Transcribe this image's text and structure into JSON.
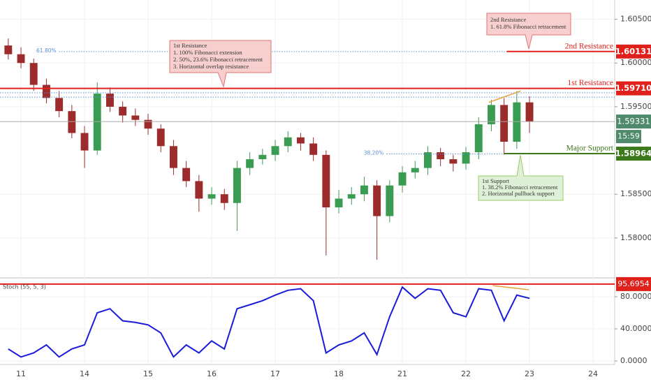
{
  "chart_data": {
    "type": "candlestick",
    "x": [
      -0.2,
      0,
      0.2,
      0.4,
      0.6,
      0.8,
      1.0,
      1.2,
      1.4,
      1.6,
      1.8,
      2.0,
      2.2,
      2.4,
      2.6,
      2.8,
      3.0,
      3.2,
      3.4,
      3.6,
      3.8,
      4.0,
      4.2,
      4.4,
      4.6,
      4.8,
      5.0,
      5.2,
      5.4,
      5.6,
      5.8,
      6.0,
      6.2,
      6.4,
      6.6,
      6.8,
      7.0,
      7.2,
      7.4,
      7.6,
      7.8,
      8.0
    ],
    "open": [
      1.602,
      1.601,
      1.6,
      1.5975,
      1.596,
      1.5945,
      1.592,
      1.59,
      1.5965,
      1.595,
      1.594,
      1.5935,
      1.5925,
      1.5905,
      1.588,
      1.5865,
      1.5845,
      1.585,
      1.584,
      1.588,
      1.589,
      1.5895,
      1.5905,
      1.5915,
      1.5908,
      1.5895,
      1.5835,
      1.5845,
      1.585,
      1.586,
      1.5825,
      1.586,
      1.5875,
      1.588,
      1.5898,
      1.589,
      1.5885,
      1.5898,
      1.593,
      1.5952,
      1.591,
      1.5955
    ],
    "high": [
      1.6028,
      1.6018,
      1.6005,
      1.5982,
      1.5968,
      1.5952,
      1.5928,
      1.5978,
      1.5972,
      1.5956,
      1.5948,
      1.5942,
      1.593,
      1.5912,
      1.5888,
      1.5872,
      1.5858,
      1.5856,
      1.5888,
      1.5898,
      1.5902,
      1.5912,
      1.5922,
      1.592,
      1.5915,
      1.59,
      1.5855,
      1.5858,
      1.587,
      1.5866,
      1.5866,
      1.5882,
      1.5888,
      1.5905,
      1.5903,
      1.5895,
      1.5904,
      1.5938,
      1.5958,
      1.596,
      1.5968,
      1.5962
    ],
    "low": [
      1.6004,
      1.5994,
      1.5968,
      1.5954,
      1.5938,
      1.5914,
      1.588,
      1.5895,
      1.5944,
      1.5932,
      1.5928,
      1.5918,
      1.5898,
      1.5872,
      1.5858,
      1.583,
      1.5838,
      1.5832,
      1.5808,
      1.5872,
      1.5884,
      1.5888,
      1.5898,
      1.59,
      1.5888,
      1.578,
      1.5828,
      1.5838,
      1.5842,
      1.5775,
      1.5818,
      1.5852,
      1.5868,
      1.5872,
      1.5882,
      1.5876,
      1.5878,
      1.589,
      1.5922,
      1.5895,
      1.5902,
      1.592
    ],
    "close": [
      1.601,
      1.6,
      1.5975,
      1.596,
      1.5945,
      1.592,
      1.59,
      1.5965,
      1.595,
      1.594,
      1.5935,
      1.5925,
      1.5905,
      1.588,
      1.5865,
      1.5845,
      1.585,
      1.584,
      1.588,
      1.589,
      1.5895,
      1.5905,
      1.5915,
      1.5908,
      1.5895,
      1.5835,
      1.5845,
      1.585,
      1.586,
      1.5825,
      1.586,
      1.5875,
      1.588,
      1.5898,
      1.589,
      1.5885,
      1.5898,
      1.593,
      1.5952,
      1.591,
      1.5955,
      1.5933
    ],
    "up_color": "#3a9b52",
    "down_color": "#9c2b2b",
    "xlim": [
      -0.33,
      9.34
    ],
    "xticks": [
      {
        "value": 0,
        "label": "11"
      },
      {
        "value": 1,
        "label": "14"
      },
      {
        "value": 2,
        "label": "15"
      },
      {
        "value": 3,
        "label": "16"
      },
      {
        "value": 4,
        "label": "17"
      },
      {
        "value": 5,
        "label": "18"
      },
      {
        "value": 6,
        "label": "21"
      },
      {
        "value": 7,
        "label": "22"
      },
      {
        "value": 8,
        "label": "23"
      },
      {
        "value": 9,
        "label": "24"
      }
    ],
    "ylim": [
      1.5756,
      1.6072
    ],
    "yticks": [
      {
        "value": 1.605,
        "label": "1.60500"
      },
      {
        "value": 1.6,
        "label": "1.60000"
      },
      {
        "value": 1.595,
        "label": "1.59500"
      },
      {
        "value": 1.585,
        "label": "1.58500"
      },
      {
        "value": 1.58,
        "label": "1.58000"
      }
    ],
    "levels": [
      {
        "name": "2nd Resistance",
        "value": 1.60131,
        "label": "1.60131",
        "color": "#e0201b",
        "from": 7.64
      },
      {
        "name": "1st Resistance",
        "value": 1.5971,
        "label": "1.59710",
        "color": "#e0201b",
        "from": -0.33
      },
      {
        "name": "Major Support",
        "value": 1.58964,
        "label": "1.58964",
        "color": "#3d7a1c",
        "from": 7.6
      }
    ],
    "current": {
      "value": 1.59331,
      "label": "1.59331",
      "time": "15:59",
      "color": "#4f8a6c"
    },
    "fib": [
      {
        "label": "61.80%",
        "value": 1.6013,
        "from": 0.6
      },
      {
        "label": "38.20%",
        "value": 1.5896,
        "from": 5.75
      },
      {
        "value": 1.5966,
        "from": -0.33
      },
      {
        "value": 1.5961,
        "from": -0.33
      }
    ],
    "fib_color": "#5b8fd6",
    "trendline": {
      "x": [
        7.36,
        7.86
      ],
      "y": [
        1.5955,
        1.5968
      ],
      "color": "#e6a23c"
    },
    "annotations": [
      {
        "lines": [
          "1st Resistance",
          "1. 100% Fibonacci extension",
          "2. 50%, 23.6% Fibonacci retracement",
          "3. Horizontal overlap resistance"
        ]
      },
      {
        "lines": [
          "2nd Resistance",
          "1. 61.8% Fibonacci retracement"
        ]
      },
      {
        "lines": [
          "1st Support",
          "1. 38.2% Fibonacci retracement",
          "2. Horizontal pullback support"
        ]
      }
    ],
    "indicator": {
      "type": "line",
      "name": "Stoch (55, 5, 3)",
      "color": "#1a1adb",
      "values": [
        15,
        5,
        10,
        20,
        5,
        15,
        20,
        60,
        65,
        50,
        48,
        45,
        35,
        5,
        20,
        10,
        25,
        15,
        65,
        70,
        75,
        82,
        88,
        90,
        75,
        10,
        20,
        25,
        35,
        8,
        55,
        92,
        78,
        90,
        88,
        60,
        55,
        90,
        88,
        50,
        82,
        78
      ],
      "ylim": [
        -4.3,
        101.7
      ],
      "yticks": [
        {
          "value": 80,
          "label": "80.0000"
        },
        {
          "value": 40,
          "label": "40.0000"
        },
        {
          "value": 0,
          "label": "0.0000"
        }
      ],
      "level": {
        "value": 95.6954,
        "label": "95.6954",
        "color": "#e0201b"
      },
      "trendline": {
        "x": [
          7.42,
          7.99
        ],
        "y": [
          93.9,
          88.7
        ],
        "color": "#e6a23c"
      }
    }
  }
}
